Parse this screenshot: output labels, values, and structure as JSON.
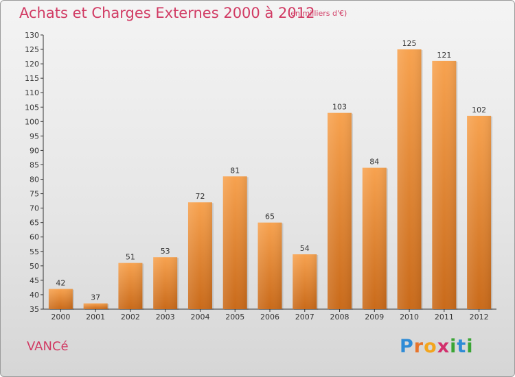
{
  "header": {
    "title": "Achats et Charges Externes 2000 à 2012",
    "subtitle": "(en milliers d'€)"
  },
  "footer": {
    "city": "VANCé",
    "logo": {
      "letters": [
        "P",
        "r",
        "o",
        "x",
        "i",
        "t",
        "i"
      ],
      "colors": [
        "#2e8bd6",
        "#e8742b",
        "#f3a51d",
        "#d22f6c",
        "#3aa535",
        "#2e8bd6",
        "#3aa535"
      ]
    }
  },
  "colors": {
    "bar_light": "#f7a24f",
    "bar_dark": "#c96a1a",
    "axis": "#333333",
    "title": "#d13a63"
  },
  "chart_data": {
    "type": "bar",
    "categories": [
      "2000",
      "2001",
      "2002",
      "2003",
      "2004",
      "2005",
      "2006",
      "2007",
      "2008",
      "2009",
      "2010",
      "2011",
      "2012"
    ],
    "values": [
      42,
      37,
      51,
      53,
      72,
      81,
      65,
      54,
      103,
      84,
      125,
      121,
      102
    ],
    "ylim": [
      35,
      130
    ],
    "yticks": [
      35,
      40,
      45,
      50,
      55,
      60,
      65,
      70,
      75,
      80,
      85,
      90,
      95,
      100,
      105,
      110,
      115,
      120,
      125,
      130
    ],
    "grid": false,
    "data_labels": true
  }
}
